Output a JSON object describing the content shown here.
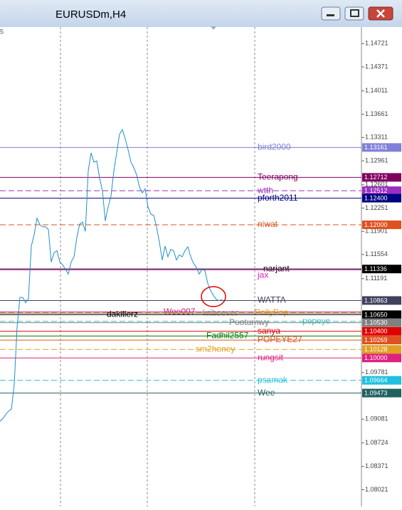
{
  "window_title": "EURUSDm,H4",
  "chart_data": {
    "type": "line",
    "color": "#1e8fc8",
    "corner_label": "5",
    "values": [
      1.0905,
      1.0909,
      1.0915,
      1.092,
      1.0923,
      1.096,
      1.1046,
      1.1091,
      1.1091,
      1.1083,
      1.1089,
      1.1168,
      1.1185,
      1.121,
      1.12,
      1.1197,
      1.1197,
      1.1193,
      1.1144,
      1.1158,
      1.1161,
      1.1144,
      1.114,
      1.1133,
      1.1126,
      1.1144,
      1.1152,
      1.1181,
      1.1201,
      1.1204,
      1.119,
      1.1281,
      1.1308,
      1.1294,
      1.1296,
      1.127,
      1.1251,
      1.1206,
      1.1227,
      1.1243,
      1.1281,
      1.1308,
      1.1336,
      1.1343,
      1.1329,
      1.1313,
      1.1294,
      1.1286,
      1.1275,
      1.1257,
      1.1248,
      1.1254,
      1.1227,
      1.1216,
      1.1214,
      1.1197,
      1.1174,
      1.1147,
      1.1168,
      1.1152,
      1.1163,
      1.1161,
      1.1147,
      1.1155,
      1.1152,
      1.1161,
      1.1167,
      1.1152,
      1.1142,
      1.1136,
      1.1126,
      1.1133,
      1.1131,
      1.1112,
      1.1101,
      1.1094,
      1.1088,
      1.1086,
      1.1088
    ],
    "ylim": [
      1.0777,
      1.1497
    ],
    "yticks": [
      1.14721,
      1.14371,
      1.14011,
      1.13661,
      1.13311,
      1.12961,
      1.12601,
      1.12251,
      1.11901,
      1.11554,
      1.11191,
      1.09781,
      1.09081,
      1.08724,
      1.08371,
      1.08021
    ],
    "levels": [
      {
        "name": "bird2000",
        "value": 1.13161,
        "value_label": "1.13161",
        "color": "#8080d8",
        "style": "solid"
      },
      {
        "name": "Teerapong",
        "value": 1.12712,
        "value_label": "1.12712",
        "color": "#800060",
        "style": "solid"
      },
      {
        "name": "wtth",
        "value": 1.12512,
        "value_label": "1.12512",
        "color": "#9a30c0",
        "style": "dashed"
      },
      {
        "name": "pforth2011",
        "value": 1.124,
        "value_label": "1.12400",
        "color": "#000080",
        "style": "solid"
      },
      {
        "name": "niwat",
        "value": 1.12,
        "value_label": "1.12000",
        "color": "#e05020",
        "style": "dashed"
      },
      {
        "name": "narjant",
        "value": 1.11336,
        "value_label": "1.11336",
        "color": "#000000",
        "style": "solid"
      },
      {
        "name": "jax",
        "value": 1.11323,
        "color": "#e020c0",
        "style": "solid"
      },
      {
        "name": "WATTA",
        "value": 1.10863,
        "value_label": "1.10863",
        "color": "#404060",
        "style": "solid"
      },
      {
        "name": "Wee007",
        "value": 1.1069,
        "color": "#c02070",
        "style": "solid"
      },
      {
        "name": "kribeever",
        "value": 1.1067,
        "color": "#909090",
        "style": "solid"
      },
      {
        "name": "PollyPop",
        "value": 1.1068,
        "color": "#e0a020",
        "style": "dashed"
      },
      {
        "name": "dakillerz",
        "value": 1.1065,
        "value_label": "1.10650",
        "color": "#000000",
        "style": "solid"
      },
      {
        "name": "popeye",
        "value": 1.1055,
        "color": "#40c0c0",
        "style": "dashed"
      },
      {
        "name": "Pootumwy",
        "value": 1.1053,
        "value_label": "1.10530",
        "color": "#808080",
        "style": "solid"
      },
      {
        "name": "sanya",
        "value": 1.104,
        "value_label": "1.10400",
        "color": "#e00000",
        "style": "solid"
      },
      {
        "name": "Fadhil2557",
        "value": 1.1033,
        "color": "#008000",
        "style": "solid"
      },
      {
        "name": "POPEYE27",
        "value": 1.10269,
        "value_label": "1.10269",
        "color": "#e05020",
        "style": "solid"
      },
      {
        "name": "sm2honey",
        "value": 1.10128,
        "value_label": "1.10128",
        "color": "#e0a020",
        "style": "dashed"
      },
      {
        "name": "rungsit",
        "value": 1.1,
        "value_label": "1.10000",
        "color": "#e0207f",
        "style": "solid"
      },
      {
        "name": "psamak",
        "value": 1.09664,
        "value_label": "1.09664",
        "color": "#20c0e0",
        "style": "dashed"
      },
      {
        "name": "Wee",
        "value": 1.09473,
        "value_label": "1.09473",
        "color": "#206060",
        "style": "solid"
      }
    ]
  }
}
